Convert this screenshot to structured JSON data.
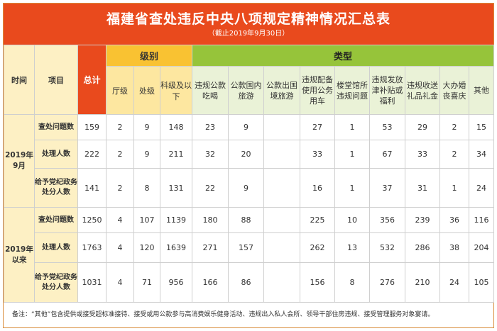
{
  "title": "福建省查处违反中央八项规定精神情况汇总表",
  "subtitle": "（截止2019年9月30日）",
  "headers": {
    "time": "时间",
    "item": "项目",
    "total": "总计",
    "level_group": "级别",
    "type_group": "类型",
    "levels": [
      "厅级",
      "处级",
      "科级及以下"
    ],
    "types": [
      "违规公款吃喝",
      "公款国内旅游",
      "公款出国境旅游",
      "违规配备使用公务用车",
      "楼堂馆所违规问题",
      "违规发放津补贴或福利",
      "违规收送礼品礼金",
      "大办婚丧喜庆",
      "其他"
    ]
  },
  "groups": [
    {
      "period": "2019年9月",
      "rows": [
        {
          "item": "查处问题数",
          "values": [
            "159",
            "2",
            "9",
            "148",
            "23",
            "9",
            "",
            "27",
            "1",
            "53",
            "29",
            "2",
            "15"
          ]
        },
        {
          "item": "处理人数",
          "values": [
            "222",
            "2",
            "9",
            "211",
            "32",
            "20",
            "",
            "33",
            "1",
            "67",
            "33",
            "2",
            "34"
          ]
        },
        {
          "item": "给予党纪政务处分人数",
          "values": [
            "141",
            "2",
            "8",
            "131",
            "22",
            "9",
            "",
            "16",
            "1",
            "37",
            "31",
            "1",
            "24"
          ]
        }
      ]
    },
    {
      "period": "2019年以来",
      "rows": [
        {
          "item": "查处问题数",
          "values": [
            "1250",
            "4",
            "107",
            "1139",
            "180",
            "88",
            "",
            "225",
            "10",
            "356",
            "239",
            "36",
            "116"
          ]
        },
        {
          "item": "处理人数",
          "values": [
            "1763",
            "4",
            "120",
            "1639",
            "271",
            "157",
            "",
            "262",
            "13",
            "532",
            "286",
            "38",
            "204"
          ]
        },
        {
          "item": "给予党纪政务处分人数",
          "values": [
            "1031",
            "4",
            "71",
            "956",
            "166",
            "86",
            "",
            "156",
            "8",
            "276",
            "210",
            "24",
            "105"
          ]
        }
      ]
    }
  ],
  "note": "备注：“其他”包含提供或接受超标准接待、接受或用公款参与高消费娱乐健身活动、违规出入私人会所、领导干部住房违规、接受管理服务对象宴请。",
  "colors": {
    "title_bg": "#e94a1d",
    "level_bg": "#f9c232",
    "type_bg": "#96c43a",
    "header_bg": "#fdf0c4"
  }
}
